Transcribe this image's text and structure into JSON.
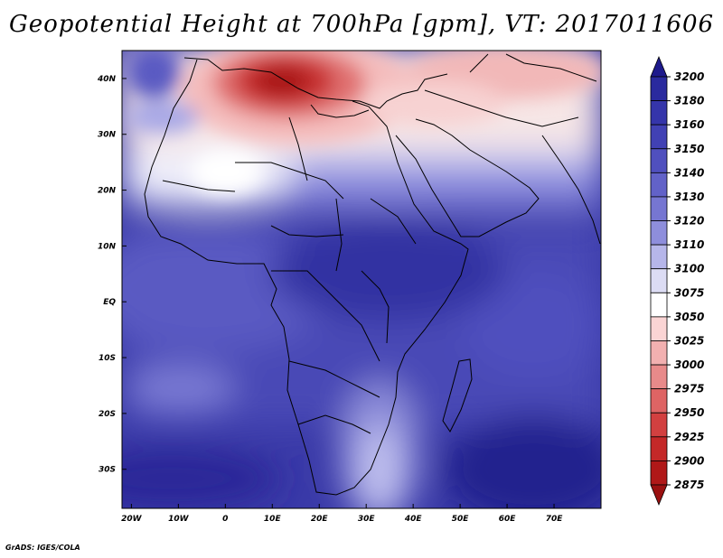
{
  "title": "Geopotential Height at 700hPa [gpm], VT: 2017011606",
  "footer": "GrADS: IGES/COLA",
  "map": {
    "projection": "latlon",
    "lon_range": [
      -22,
      80
    ],
    "lat_range": [
      -37,
      45
    ],
    "x_ticks": [
      "20W",
      "10W",
      "0",
      "10E",
      "20E",
      "30E",
      "40E",
      "50E",
      "60E",
      "70E"
    ],
    "x_tick_values": [
      -20,
      -10,
      0,
      10,
      20,
      30,
      40,
      50,
      60,
      70
    ],
    "y_ticks": [
      "40N",
      "30N",
      "20N",
      "10N",
      "EQ",
      "10S",
      "20S",
      "30S"
    ],
    "y_tick_values": [
      40,
      30,
      20,
      10,
      0,
      -10,
      -20,
      -30
    ]
  },
  "colorbar": {
    "levels": [
      "3200",
      "3180",
      "3160",
      "3150",
      "3140",
      "3130",
      "3120",
      "3110",
      "3100",
      "3075",
      "3050",
      "3025",
      "3000",
      "2975",
      "2950",
      "2925",
      "2900",
      "2875"
    ],
    "colors": [
      "#1e1a8c",
      "#2a2a9e",
      "#3535aa",
      "#4141b4",
      "#5050be",
      "#6262c8",
      "#7676d2",
      "#8e8edc",
      "#b6b6ea",
      "#dcdcf4",
      "#ffffff",
      "#fad4d4",
      "#f2b0b0",
      "#e88a8a",
      "#de6464",
      "#d24040",
      "#c42828",
      "#b01818",
      "#9a1010"
    ]
  }
}
